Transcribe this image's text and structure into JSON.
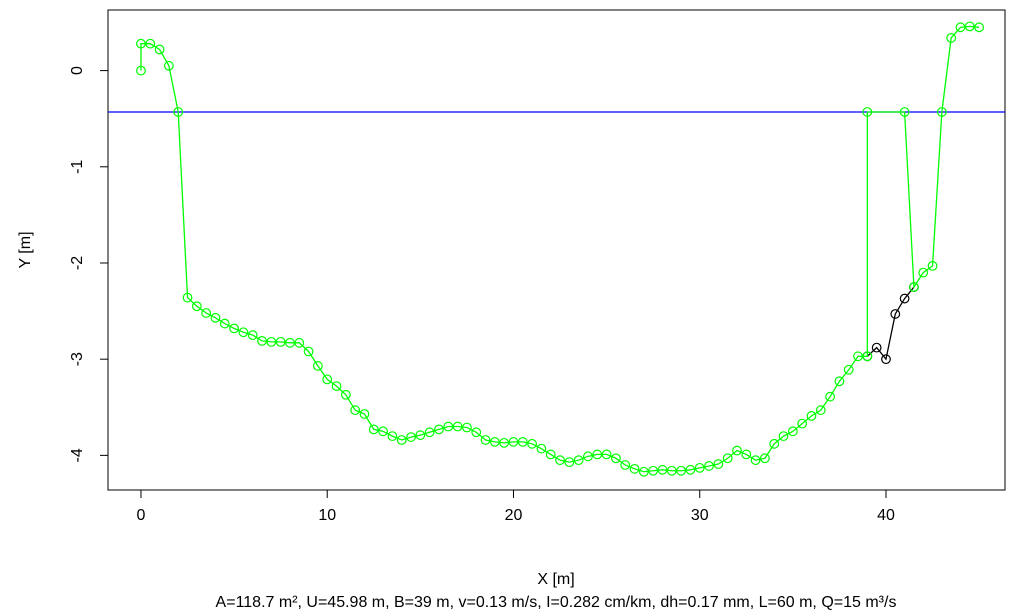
{
  "chart_data": {
    "type": "line",
    "xlabel": "X [m]",
    "ylabel": "Y [m]",
    "annotation": "A=118.7 m², U=45.98 m, B=39 m, v=0.13 m/s, I=0.282 cm/km, dh=0.17 mm, L=60 m, Q=15 m³/s",
    "xlim": [
      -1.77,
      46.39
    ],
    "ylim": [
      -4.36,
      0.63
    ],
    "xticks": [
      0,
      10,
      20,
      30,
      40
    ],
    "yticks": [
      0,
      -1,
      -2,
      -3,
      -4
    ],
    "hline": {
      "value": -0.43,
      "color": "#0000ff"
    },
    "series": [
      {
        "color": "#000000",
        "x": [
          39,
          39.5,
          40,
          40.5,
          41,
          41.5
        ],
        "values": [
          -2.97,
          -2.88,
          -3.0,
          -2.53,
          -2.37,
          -2.25
        ]
      },
      {
        "color": "#00ff00",
        "x": [
          0,
          0,
          0.5,
          1,
          1.5,
          2,
          2.5,
          3,
          3.5,
          4,
          4.5,
          5,
          5.5,
          6,
          6.5,
          7,
          7.5,
          8,
          8.5,
          9,
          9.5,
          10,
          10.5,
          11,
          11.5,
          12,
          12.5,
          13,
          13.5,
          14,
          14.5,
          15,
          15.5,
          16,
          16.5,
          17,
          17.5,
          18,
          18.5,
          19,
          19.5,
          20,
          20.5,
          21,
          21.5,
          22,
          22.5,
          23,
          23.5,
          24,
          24.5,
          25,
          25.5,
          26,
          26.5,
          27,
          27.5,
          28,
          28.5,
          29,
          29.5,
          30,
          30.5,
          31,
          31.5,
          32,
          32.5,
          33,
          33.5,
          34,
          34.5,
          35,
          35.5,
          36,
          36.5,
          37,
          37.5,
          38,
          38.5,
          39,
          39,
          41,
          41.5,
          42,
          42.5,
          43,
          43.5,
          44,
          44.5,
          45
        ],
        "values": [
          0,
          0.28,
          0.28,
          0.22,
          0.05,
          -0.43,
          -2.36,
          -2.45,
          -2.52,
          -2.57,
          -2.63,
          -2.68,
          -2.72,
          -2.75,
          -2.81,
          -2.82,
          -2.82,
          -2.83,
          -2.83,
          -2.92,
          -3.07,
          -3.21,
          -3.28,
          -3.37,
          -3.53,
          -3.57,
          -3.73,
          -3.75,
          -3.8,
          -3.84,
          -3.81,
          -3.79,
          -3.76,
          -3.73,
          -3.7,
          -3.7,
          -3.71,
          -3.76,
          -3.84,
          -3.86,
          -3.87,
          -3.86,
          -3.86,
          -3.88,
          -3.93,
          -3.99,
          -4.05,
          -4.07,
          -4.05,
          -4.01,
          -3.99,
          -3.99,
          -4.03,
          -4.1,
          -4.14,
          -4.17,
          -4.16,
          -4.15,
          -4.16,
          -4.16,
          -4.15,
          -4.13,
          -4.11,
          -4.09,
          -4.03,
          -3.95,
          -3.99,
          -4.05,
          -4.03,
          -3.88,
          -3.8,
          -3.75,
          -3.67,
          -3.59,
          -3.53,
          -3.39,
          -3.23,
          -3.11,
          -2.97,
          -2.97,
          -0.43,
          -0.43,
          -2.25,
          -2.1,
          -2.03,
          -0.43,
          0.34,
          0.45,
          0.46,
          0.45
        ]
      }
    ]
  }
}
